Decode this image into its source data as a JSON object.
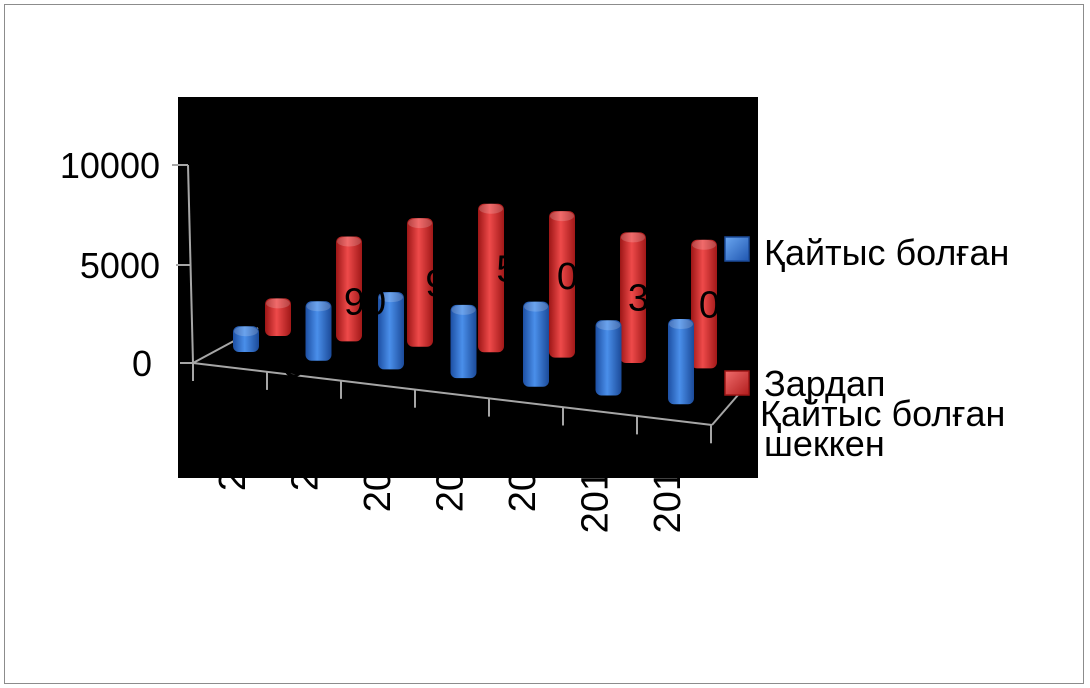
{
  "chart_data": {
    "type": "bar",
    "title": "",
    "xlabel": "",
    "ylabel": "",
    "ylim": [
      0,
      10000
    ],
    "yticks": [
      "0",
      "5000",
      "10000"
    ],
    "categories": [
      "2",
      "2",
      "20",
      "20",
      "20",
      "201",
      "201"
    ],
    "series": [
      {
        "name": "Қайтыс болған",
        "color": "#2f6fd0",
        "values": [
          1300,
          3000,
          3900,
          3700,
          4300,
          3800,
          4300
        ]
      },
      {
        "name": "Зардап шеккен",
        "color": "#d32b2b",
        "values": [
          1900,
          5300,
          6500,
          7500,
          7400,
          6600,
          6500
        ]
      }
    ],
    "data_labels": [
      "5",
      "90",
      "9",
      "5",
      "08",
      "38",
      "04"
    ],
    "legend_extra": "Қайтыс болған",
    "legend_position": "right",
    "grid": false,
    "plot_background": "#000000"
  }
}
